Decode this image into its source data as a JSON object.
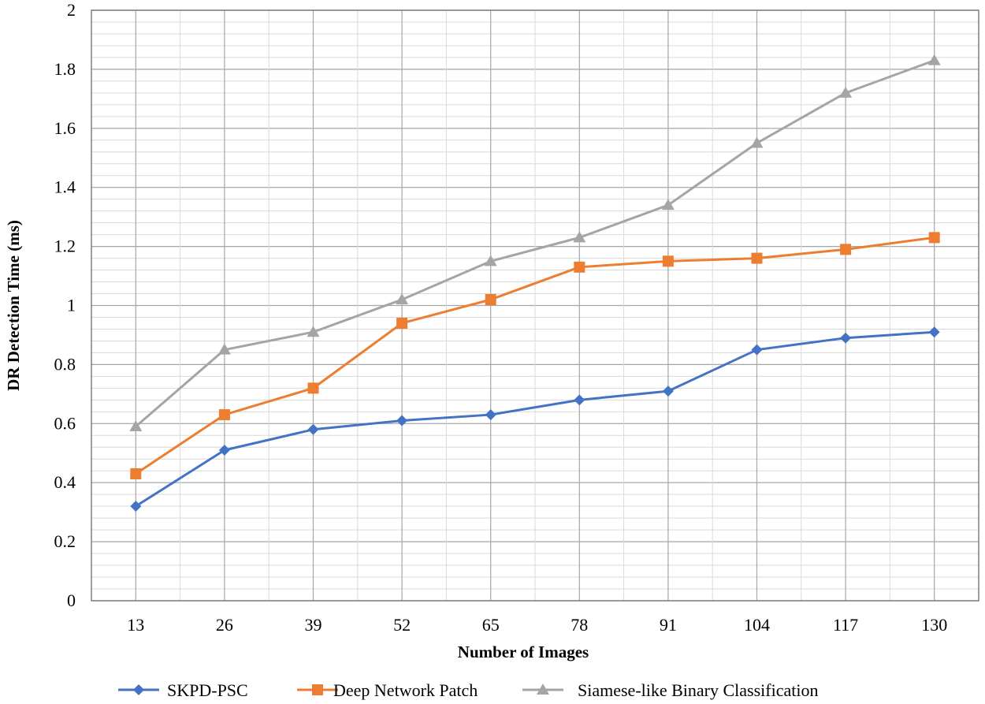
{
  "chart_data": {
    "type": "line",
    "title": "",
    "xlabel": "Number of Images",
    "ylabel": "DR Detection Time (ms)",
    "categories": [
      "13",
      "26",
      "39",
      "52",
      "65",
      "78",
      "91",
      "104",
      "117",
      "130"
    ],
    "ylim": [
      0,
      2
    ],
    "yticks": [
      "0",
      "0.2",
      "0.4",
      "0.6",
      "0.8",
      "1",
      "1.2",
      "1.4",
      "1.6",
      "1.8",
      "2"
    ],
    "grid": true,
    "legend": "bottom",
    "series": [
      {
        "name": "SKPD-PSC",
        "color": "#4472c4",
        "marker": "diamond",
        "values": [
          0.32,
          0.51,
          0.58,
          0.61,
          0.63,
          0.68,
          0.71,
          0.85,
          0.89,
          0.91
        ]
      },
      {
        "name": "Deep Network Patch",
        "color": "#ed7d31",
        "marker": "square",
        "values": [
          0.43,
          0.63,
          0.72,
          0.94,
          1.02,
          1.13,
          1.15,
          1.16,
          1.19,
          1.23
        ]
      },
      {
        "name": "Siamese-like Binary Classification",
        "color": "#a5a5a5",
        "marker": "triangle",
        "values": [
          0.59,
          0.85,
          0.91,
          1.02,
          1.15,
          1.23,
          1.34,
          1.55,
          1.72,
          1.83
        ]
      }
    ]
  }
}
